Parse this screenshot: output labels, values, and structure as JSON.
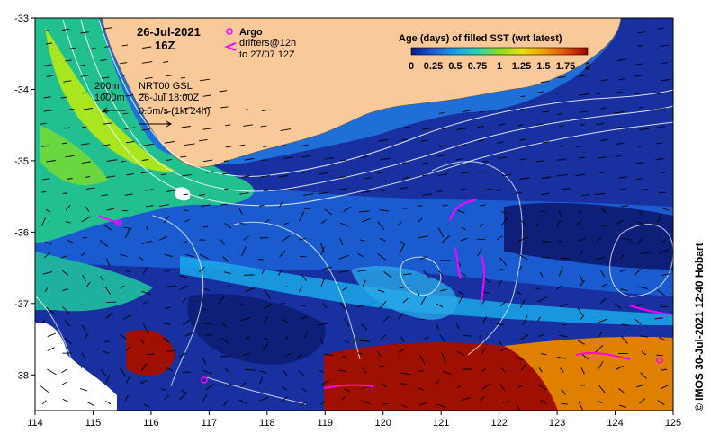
{
  "title": {
    "date": "26-Jul-2021",
    "hour": "16Z"
  },
  "legend": {
    "title": "Age (days) of filled SST (wrt latest)",
    "ticks": [
      "0",
      "0.25",
      "0.5",
      "0.75",
      "1",
      "1.25",
      "1.5",
      "1.75",
      "2"
    ],
    "colors": [
      "#0a1a8c",
      "#1f5ad6",
      "#1aa0e6",
      "#2ad0b4",
      "#8ae020",
      "#e8e010",
      "#f0a000",
      "#e05000",
      "#a00000"
    ]
  },
  "argo": {
    "label": "Argo",
    "drifters_label": "drifters@12h",
    "drifters_range": "to 27/07 12Z",
    "color": "#ff00ff"
  },
  "isobaths": {
    "shallow": "200m",
    "deep": "1000m"
  },
  "current_info": {
    "product": "NRT00 GSL",
    "time": "26-Jul 18:00Z",
    "scale": "0.5m/s (1kt 24h)"
  },
  "axes": {
    "x_ticks": [
      "114",
      "115",
      "116",
      "117",
      "118",
      "119",
      "120",
      "121",
      "122",
      "123",
      "124",
      "125"
    ],
    "y_ticks": [
      "-33",
      "-34",
      "-35",
      "-36",
      "-37",
      "-38"
    ],
    "xlim": [
      114,
      125
    ],
    "ylim": [
      -38.5,
      -33
    ]
  },
  "credit": "© IMOS 30-Jul-2021 12:40 Hobart",
  "colors": {
    "land": "#f9c99a",
    "deep_ocean": "#1830a0",
    "mid_ocean": "#1a5cd0",
    "light_ocean": "#1aa8e8"
  }
}
